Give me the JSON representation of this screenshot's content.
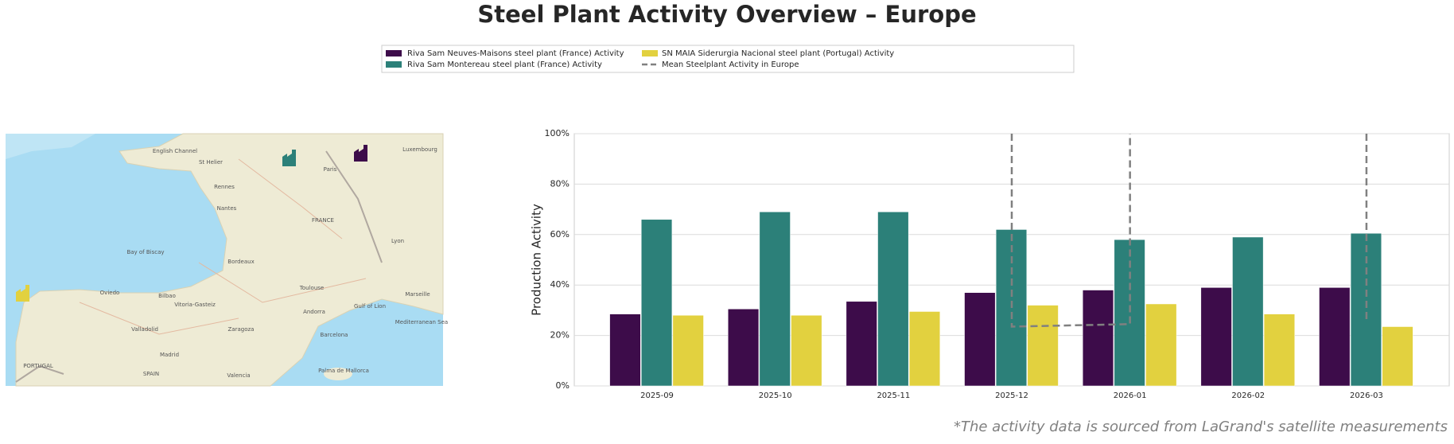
{
  "chart_data": {
    "type": "bar",
    "title": "Steel Plant Activity Overview – Europe",
    "y_label": "Production Activity",
    "footnote": "*The activity data is sourced from LaGrand's satellite measurements",
    "categories": [
      "2025-09",
      "2025-10",
      "2025-11",
      "2025-12",
      "2026-01",
      "2026-02",
      "2026-03"
    ],
    "series": [
      {
        "name": "Riva Sam Neuves-Maisons steel plant (France) Activity",
        "color": "#3d0c4a",
        "values": [
          28.5,
          30.5,
          33.5,
          37,
          38,
          39,
          39
        ]
      },
      {
        "name": "Riva Sam Montereau steel plant (France) Activity",
        "color": "#2c8079",
        "values": [
          66,
          69,
          69,
          62,
          58,
          59,
          60.5
        ]
      },
      {
        "name": "SN MAIA Siderurgia Nacional steel plant (Portugal) Activity",
        "color": "#e2d13f",
        "values": [
          28,
          28,
          29.5,
          32,
          32.5,
          28.5,
          23.5
        ]
      },
      {
        "name": "Mean Steelplant Activity in Europe",
        "type": "line",
        "color": "#808080",
        "linestyle": "dashed",
        "x": [
          "2025-12",
          "2025-12",
          "2026-01",
          "2026-01",
          null,
          "2026-03",
          "2026-03"
        ],
        "values": [
          100,
          23.5,
          24.5,
          100,
          null,
          100,
          25
        ]
      }
    ],
    "ylim": [
      0,
      100
    ],
    "yticks": [
      {
        "value": 0,
        "label": "0%"
      },
      {
        "value": 20,
        "label": "20%"
      },
      {
        "value": 40,
        "label": "40%"
      },
      {
        "value": 60,
        "label": "60%"
      },
      {
        "value": 80,
        "label": "80%"
      },
      {
        "value": 100,
        "label": "100%"
      }
    ],
    "grid": true,
    "legend": "top"
  },
  "map": {
    "labels": [
      "English Channel",
      "St Helier",
      "Paris",
      "Luxembourg",
      "Rennes",
      "Nantes",
      "FRANCE",
      "Lyon",
      "Bay of Biscay",
      "Bordeaux",
      "Toulouse",
      "Marseille",
      "Oviedo",
      "Bilbao",
      "Vitoria-Gasteiz",
      "Andorra",
      "Gulf of Lion",
      "Mediterranean Sea",
      "Valladolid",
      "Zaragoza",
      "Barcelona",
      "Madrid",
      "PORTUGAL",
      "SPAIN",
      "Valencia",
      "Palma de Mallorca"
    ]
  }
}
